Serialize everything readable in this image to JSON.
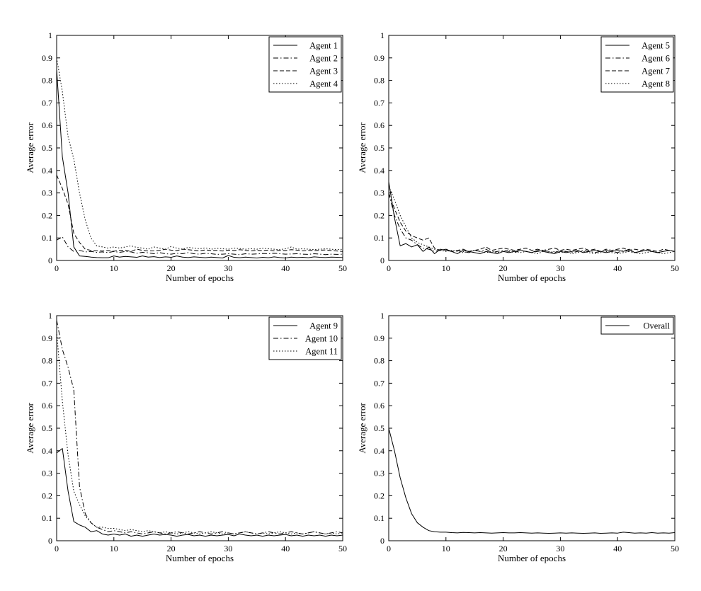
{
  "chart_data": [
    {
      "type": "line",
      "xlabel": "Number of epochs",
      "ylabel": "Average error",
      "xlim": [
        0,
        50
      ],
      "ylim": [
        0,
        1
      ],
      "xticks": [
        0,
        10,
        20,
        30,
        40,
        50
      ],
      "yticks": [
        0,
        0.1,
        0.2,
        0.3,
        0.4,
        0.5,
        0.6,
        0.7,
        0.8,
        0.9,
        1
      ],
      "ytick_labels": [
        "0",
        "0.1",
        "0.2",
        "0.3",
        "0.4",
        "0.5",
        "0.6",
        "0.7",
        "0.8",
        "0.9",
        "1"
      ],
      "legend_position": "top-right",
      "series": [
        {
          "name": "Agent 1",
          "style": "solid",
          "values": [
            0.85,
            0.46,
            0.3,
            0.06,
            0.02,
            0.018,
            0.015,
            0.013,
            0.012,
            0.012,
            0.02,
            0.015,
            0.018,
            0.016,
            0.014,
            0.02,
            0.015,
            0.017,
            0.013,
            0.016,
            0.014,
            0.02,
            0.015,
            0.013,
            0.016,
            0.014,
            0.012,
            0.015,
            0.013,
            0.011,
            0.022,
            0.014,
            0.012,
            0.015,
            0.013,
            0.011,
            0.014,
            0.012,
            0.016,
            0.013,
            0.011,
            0.015,
            0.013,
            0.014,
            0.012,
            0.016,
            0.014,
            0.013,
            0.015,
            0.014,
            0.013
          ]
        },
        {
          "name": "Agent 2",
          "style": "dashdot",
          "values": [
            0.09,
            0.105,
            0.06,
            0.04,
            0.045,
            0.038,
            0.04,
            0.036,
            0.038,
            0.035,
            0.04,
            0.036,
            0.04,
            0.038,
            0.032,
            0.036,
            0.034,
            0.03,
            0.035,
            0.03,
            0.028,
            0.032,
            0.03,
            0.035,
            0.03,
            0.028,
            0.032,
            0.03,
            0.027,
            0.028,
            0.03,
            0.028,
            0.026,
            0.03,
            0.028,
            0.029,
            0.031,
            0.03,
            0.032,
            0.03,
            0.028,
            0.029,
            0.03,
            0.028,
            0.027,
            0.03,
            0.028,
            0.026,
            0.028,
            0.027,
            0.028
          ]
        },
        {
          "name": "Agent 3",
          "style": "dashed",
          "values": [
            0.38,
            0.32,
            0.25,
            0.12,
            0.08,
            0.05,
            0.045,
            0.043,
            0.042,
            0.044,
            0.041,
            0.045,
            0.046,
            0.04,
            0.05,
            0.045,
            0.042,
            0.043,
            0.045,
            0.05,
            0.046,
            0.044,
            0.05,
            0.048,
            0.045,
            0.043,
            0.047,
            0.044,
            0.045,
            0.042,
            0.046,
            0.044,
            0.048,
            0.045,
            0.043,
            0.045,
            0.044,
            0.046,
            0.043,
            0.045,
            0.044,
            0.048,
            0.046,
            0.043,
            0.045,
            0.044,
            0.045,
            0.047,
            0.044,
            0.042,
            0.04
          ]
        },
        {
          "name": "Agent 4",
          "style": "dotted",
          "values": [
            0.9,
            0.75,
            0.55,
            0.45,
            0.3,
            0.18,
            0.1,
            0.065,
            0.06,
            0.055,
            0.06,
            0.055,
            0.06,
            0.065,
            0.058,
            0.055,
            0.05,
            0.06,
            0.055,
            0.05,
            0.062,
            0.055,
            0.05,
            0.058,
            0.055,
            0.052,
            0.056,
            0.05,
            0.054,
            0.052,
            0.05,
            0.055,
            0.053,
            0.05,
            0.052,
            0.05,
            0.054,
            0.052,
            0.05,
            0.048,
            0.052,
            0.06,
            0.05,
            0.052,
            0.05,
            0.048,
            0.05,
            0.052,
            0.05,
            0.048,
            0.05
          ]
        }
      ]
    },
    {
      "type": "line",
      "xlabel": "Number of epochs",
      "ylabel": "Average error",
      "xlim": [
        0,
        50
      ],
      "ylim": [
        0,
        1
      ],
      "xticks": [
        0,
        10,
        20,
        30,
        40,
        50
      ],
      "yticks": [
        0,
        0.1,
        0.2,
        0.3,
        0.4,
        0.5,
        0.6,
        0.7,
        0.8,
        0.9,
        1
      ],
      "ytick_labels": [
        "0",
        "0.1",
        "0.2",
        "0.3",
        "0.4",
        "0.5",
        "0.6",
        "0.7",
        "0.8",
        "0.9",
        "1"
      ],
      "legend_position": "top-right",
      "series": [
        {
          "name": "Agent 5",
          "style": "solid",
          "values": [
            0.35,
            0.19,
            0.065,
            0.075,
            0.06,
            0.07,
            0.04,
            0.06,
            0.03,
            0.05,
            0.045,
            0.04,
            0.03,
            0.045,
            0.04,
            0.035,
            0.03,
            0.04,
            0.035,
            0.03,
            0.04,
            0.035,
            0.04,
            0.045,
            0.04,
            0.035,
            0.045,
            0.04,
            0.035,
            0.03,
            0.04,
            0.035,
            0.04,
            0.045,
            0.035,
            0.04,
            0.045,
            0.04,
            0.035,
            0.04,
            0.045,
            0.04,
            0.05,
            0.035,
            0.04,
            0.045,
            0.04,
            0.035,
            0.04,
            0.045,
            0.04
          ]
        },
        {
          "name": "Agent 6",
          "style": "dashdot",
          "values": [
            0.3,
            0.2,
            0.14,
            0.1,
            0.09,
            0.07,
            0.055,
            0.05,
            0.04,
            0.045,
            0.05,
            0.04,
            0.045,
            0.04,
            0.035,
            0.045,
            0.04,
            0.05,
            0.035,
            0.04,
            0.045,
            0.04,
            0.035,
            0.045,
            0.04,
            0.035,
            0.04,
            0.045,
            0.04,
            0.035,
            0.045,
            0.04,
            0.035,
            0.04,
            0.045,
            0.04,
            0.035,
            0.04,
            0.045,
            0.04,
            0.035,
            0.045,
            0.04,
            0.035,
            0.04,
            0.045,
            0.04,
            0.035,
            0.04,
            0.045,
            0.04
          ]
        },
        {
          "name": "Agent 7",
          "style": "dashed",
          "values": [
            0.3,
            0.23,
            0.17,
            0.13,
            0.11,
            0.1,
            0.09,
            0.1,
            0.055,
            0.045,
            0.05,
            0.04,
            0.045,
            0.05,
            0.04,
            0.045,
            0.05,
            0.06,
            0.045,
            0.05,
            0.055,
            0.05,
            0.045,
            0.05,
            0.055,
            0.045,
            0.05,
            0.045,
            0.05,
            0.055,
            0.045,
            0.05,
            0.045,
            0.05,
            0.055,
            0.045,
            0.05,
            0.04,
            0.05,
            0.045,
            0.05,
            0.055,
            0.045,
            0.05,
            0.045,
            0.05,
            0.045,
            0.04,
            0.05,
            0.045,
            0.04
          ]
        },
        {
          "name": "Agent 8",
          "style": "dotted",
          "values": [
            0.33,
            0.27,
            0.2,
            0.15,
            0.1,
            0.08,
            0.07,
            0.06,
            0.05,
            0.045,
            0.04,
            0.045,
            0.04,
            0.035,
            0.04,
            0.045,
            0.04,
            0.035,
            0.04,
            0.035,
            0.04,
            0.045,
            0.04,
            0.035,
            0.04,
            0.035,
            0.03,
            0.04,
            0.035,
            0.04,
            0.035,
            0.04,
            0.03,
            0.035,
            0.04,
            0.035,
            0.03,
            0.035,
            0.04,
            0.035,
            0.03,
            0.035,
            0.04,
            0.035,
            0.03,
            0.035,
            0.04,
            0.035,
            0.03,
            0.035,
            0.04
          ]
        }
      ]
    },
    {
      "type": "line",
      "xlabel": "Number of epochs",
      "ylabel": "Average error",
      "xlim": [
        0,
        50
      ],
      "ylim": [
        0,
        1
      ],
      "xticks": [
        0,
        10,
        20,
        30,
        40,
        50
      ],
      "yticks": [
        0,
        0.1,
        0.2,
        0.3,
        0.4,
        0.5,
        0.6,
        0.7,
        0.8,
        0.9,
        1
      ],
      "ytick_labels": [
        "0",
        "0.1",
        "0.2",
        "0.3",
        "0.4",
        "0.5",
        "0.6",
        "0.7",
        "0.8",
        "0.9",
        "1"
      ],
      "legend_position": "top-right",
      "series": [
        {
          "name": "Agent 9",
          "style": "solid",
          "values": [
            0.39,
            0.41,
            0.22,
            0.085,
            0.07,
            0.06,
            0.04,
            0.045,
            0.03,
            0.025,
            0.03,
            0.025,
            0.03,
            0.02,
            0.025,
            0.02,
            0.025,
            0.03,
            0.025,
            0.028,
            0.025,
            0.02,
            0.025,
            0.028,
            0.022,
            0.025,
            0.02,
            0.025,
            0.022,
            0.025,
            0.028,
            0.022,
            0.03,
            0.025,
            0.022,
            0.025,
            0.02,
            0.025,
            0.022,
            0.025,
            0.028,
            0.022,
            0.025,
            0.02,
            0.025,
            0.022,
            0.025,
            0.02,
            0.025,
            0.022,
            0.025
          ]
        },
        {
          "name": "Agent 10",
          "style": "dashdot",
          "values": [
            0.98,
            0.85,
            0.77,
            0.67,
            0.24,
            0.12,
            0.08,
            0.06,
            0.05,
            0.04,
            0.045,
            0.04,
            0.035,
            0.04,
            0.035,
            0.03,
            0.035,
            0.04,
            0.035,
            0.03,
            0.035,
            0.04,
            0.035,
            0.03,
            0.035,
            0.04,
            0.035,
            0.03,
            0.035,
            0.04,
            0.035,
            0.03,
            0.035,
            0.04,
            0.035,
            0.03,
            0.035,
            0.04,
            0.035,
            0.03,
            0.035,
            0.04,
            0.035,
            0.03,
            0.035,
            0.04,
            0.035,
            0.03,
            0.035,
            0.04,
            0.035
          ]
        },
        {
          "name": "Agent 11",
          "style": "dotted",
          "values": [
            0.93,
            0.62,
            0.38,
            0.22,
            0.16,
            0.11,
            0.08,
            0.06,
            0.06,
            0.055,
            0.055,
            0.05,
            0.045,
            0.05,
            0.045,
            0.04,
            0.045,
            0.04,
            0.035,
            0.04,
            0.035,
            0.03,
            0.035,
            0.04,
            0.035,
            0.03,
            0.035,
            0.04,
            0.035,
            0.03,
            0.035,
            0.03,
            0.035,
            0.04,
            0.035,
            0.03,
            0.035,
            0.03,
            0.035,
            0.04,
            0.035,
            0.03,
            0.035,
            0.03,
            0.035,
            0.04,
            0.035,
            0.03,
            0.035,
            0.03,
            0.035
          ]
        }
      ]
    },
    {
      "type": "line",
      "xlabel": "Number of epochs",
      "ylabel": "Average error",
      "xlim": [
        0,
        50
      ],
      "ylim": [
        0,
        1
      ],
      "xticks": [
        0,
        10,
        20,
        30,
        40,
        50
      ],
      "yticks": [
        0,
        0.1,
        0.2,
        0.3,
        0.4,
        0.5,
        0.6,
        0.7,
        0.8,
        0.9,
        1
      ],
      "ytick_labels": [
        "0",
        "0.1",
        "0.2",
        "0.3",
        "0.4",
        "0.5",
        "0.6",
        "0.7",
        "0.8",
        "0.9",
        "1"
      ],
      "legend_position": "top-right",
      "series": [
        {
          "name": "Overall",
          "style": "solid",
          "values": [
            0.5,
            0.4,
            0.28,
            0.19,
            0.12,
            0.08,
            0.06,
            0.045,
            0.04,
            0.038,
            0.038,
            0.036,
            0.035,
            0.037,
            0.036,
            0.035,
            0.036,
            0.035,
            0.034,
            0.035,
            0.036,
            0.035,
            0.035,
            0.036,
            0.035,
            0.034,
            0.035,
            0.034,
            0.033,
            0.034,
            0.035,
            0.034,
            0.035,
            0.034,
            0.033,
            0.034,
            0.035,
            0.033,
            0.034,
            0.035,
            0.034,
            0.038,
            0.036,
            0.034,
            0.035,
            0.034,
            0.036,
            0.034,
            0.035,
            0.034,
            0.036
          ]
        }
      ]
    }
  ]
}
